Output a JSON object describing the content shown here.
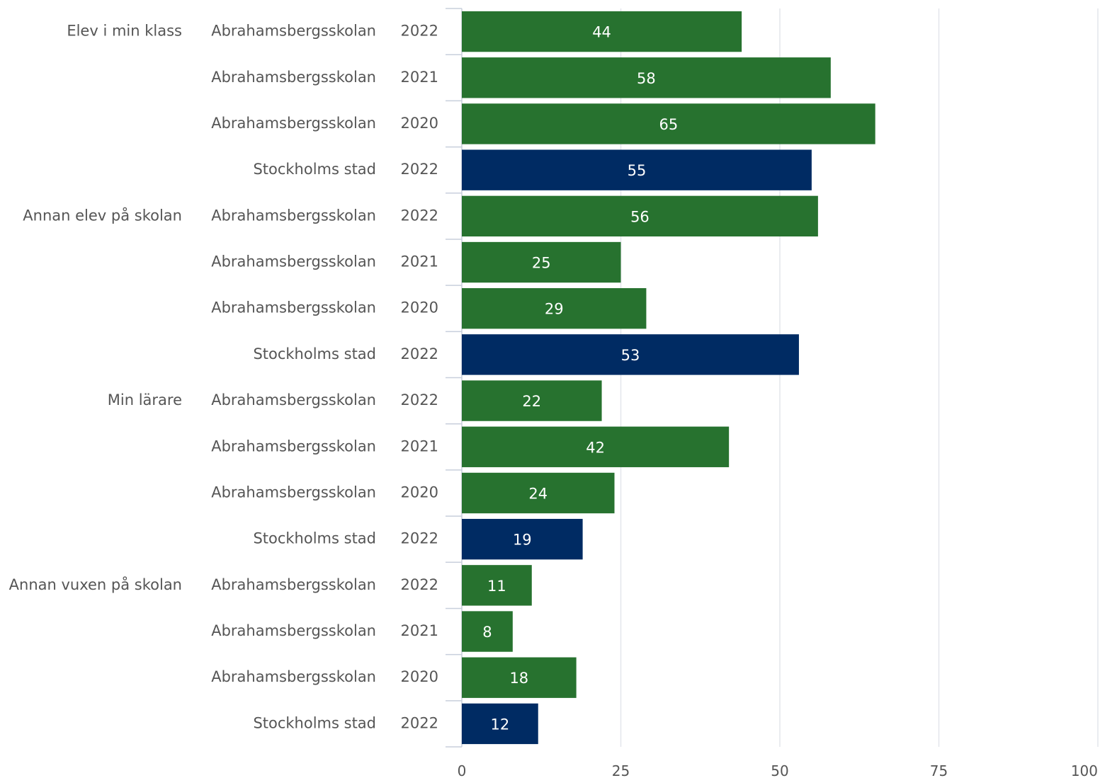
{
  "chart_data": {
    "type": "bar",
    "orientation": "horizontal",
    "xlim": [
      0,
      100
    ],
    "x_ticks": [
      "0",
      "25",
      "50",
      "75",
      "100"
    ],
    "grid": true,
    "colors": {
      "Abrahamsbergsskolan": "#27722f",
      "Stockholms stad": "#002b63",
      "grid": "#e3e6ec",
      "label": "#555555"
    },
    "groups": [
      {
        "name": "Elev i min klass",
        "rows": [
          {
            "school": "Abrahamsbergsskolan",
            "year": "2022",
            "value": 44
          },
          {
            "school": "Abrahamsbergsskolan",
            "year": "2021",
            "value": 58
          },
          {
            "school": "Abrahamsbergsskolan",
            "year": "2020",
            "value": 65
          },
          {
            "school": "Stockholms stad",
            "year": "2022",
            "value": 55
          }
        ]
      },
      {
        "name": "Annan elev på skolan",
        "rows": [
          {
            "school": "Abrahamsbergsskolan",
            "year": "2022",
            "value": 56
          },
          {
            "school": "Abrahamsbergsskolan",
            "year": "2021",
            "value": 25
          },
          {
            "school": "Abrahamsbergsskolan",
            "year": "2020",
            "value": 29
          },
          {
            "school": "Stockholms stad",
            "year": "2022",
            "value": 53
          }
        ]
      },
      {
        "name": "Min lärare",
        "rows": [
          {
            "school": "Abrahamsbergsskolan",
            "year": "2022",
            "value": 22
          },
          {
            "school": "Abrahamsbergsskolan",
            "year": "2021",
            "value": 42
          },
          {
            "school": "Abrahamsbergsskolan",
            "year": "2020",
            "value": 24
          },
          {
            "school": "Stockholms stad",
            "year": "2022",
            "value": 19
          }
        ]
      },
      {
        "name": "Annan vuxen på skolan",
        "rows": [
          {
            "school": "Abrahamsbergsskolan",
            "year": "2022",
            "value": 11
          },
          {
            "school": "Abrahamsbergsskolan",
            "year": "2021",
            "value": 8
          },
          {
            "school": "Abrahamsbergsskolan",
            "year": "2020",
            "value": 18
          },
          {
            "school": "Stockholms stad",
            "year": "2022",
            "value": 12
          }
        ]
      }
    ]
  }
}
